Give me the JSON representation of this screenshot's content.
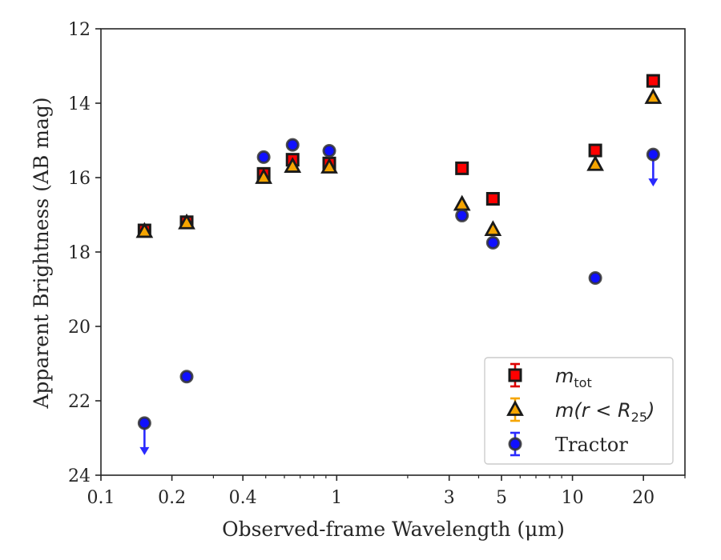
{
  "chart_data": {
    "type": "scatter",
    "title": "",
    "xlabel": "Observed-frame Wavelength (μm)",
    "ylabel": "Apparent Brightness (AB mag)",
    "xscale": "log",
    "xlim": [
      0.1,
      30
    ],
    "ylim": [
      24,
      12
    ],
    "y_inverted": true,
    "x_ticks": [
      0.1,
      0.2,
      0.4,
      1,
      3,
      5,
      10,
      20
    ],
    "x_tick_labels": [
      "0.1",
      "0.2",
      "0.4",
      "1",
      "3",
      "5",
      "10",
      "20"
    ],
    "y_ticks": [
      12,
      14,
      16,
      18,
      20,
      22,
      24
    ],
    "y_tick_labels": [
      "12",
      "14",
      "16",
      "18",
      "20",
      "22",
      "24"
    ],
    "grid": false,
    "legend_position": "bottom-right",
    "series": [
      {
        "name": "m_tot",
        "legend_parts": [
          "m",
          "tot",
          ""
        ],
        "marker": "square",
        "color": "#ff0000",
        "edge_color": "#1a1a1a",
        "x": [
          0.153,
          0.231,
          0.49,
          0.65,
          0.93,
          3.4,
          4.6,
          12.5,
          22.0
        ],
        "y": [
          17.42,
          17.2,
          15.9,
          15.52,
          15.62,
          15.75,
          16.57,
          15.27,
          13.4
        ],
        "upper_limits": [
          false,
          false,
          false,
          false,
          false,
          false,
          false,
          false,
          false
        ]
      },
      {
        "name": "m(r < R_25)",
        "legend_parts": [
          "m(r < R",
          "25",
          ")"
        ],
        "marker": "triangle",
        "color": "#f5a500",
        "edge_color": "#1a1a1a",
        "x": [
          0.153,
          0.231,
          0.49,
          0.65,
          0.93,
          3.4,
          4.6,
          12.5,
          22.0
        ],
        "y": [
          17.45,
          17.22,
          16.0,
          15.7,
          15.72,
          16.72,
          17.4,
          15.65,
          13.85
        ],
        "upper_limits": [
          false,
          false,
          false,
          false,
          false,
          false,
          false,
          false,
          false
        ]
      },
      {
        "name": "Tractor",
        "legend_parts": [
          "Tractor",
          "",
          ""
        ],
        "marker": "circle",
        "color": "#1010ff",
        "edge_color": "#333333",
        "x": [
          0.153,
          0.231,
          0.49,
          0.65,
          0.93,
          3.4,
          4.6,
          12.5,
          22.0
        ],
        "y": [
          22.6,
          21.35,
          15.45,
          15.12,
          15.28,
          17.02,
          17.75,
          18.7,
          15.38
        ],
        "upper_limits": [
          true,
          false,
          false,
          false,
          false,
          false,
          false,
          false,
          true
        ]
      }
    ]
  }
}
